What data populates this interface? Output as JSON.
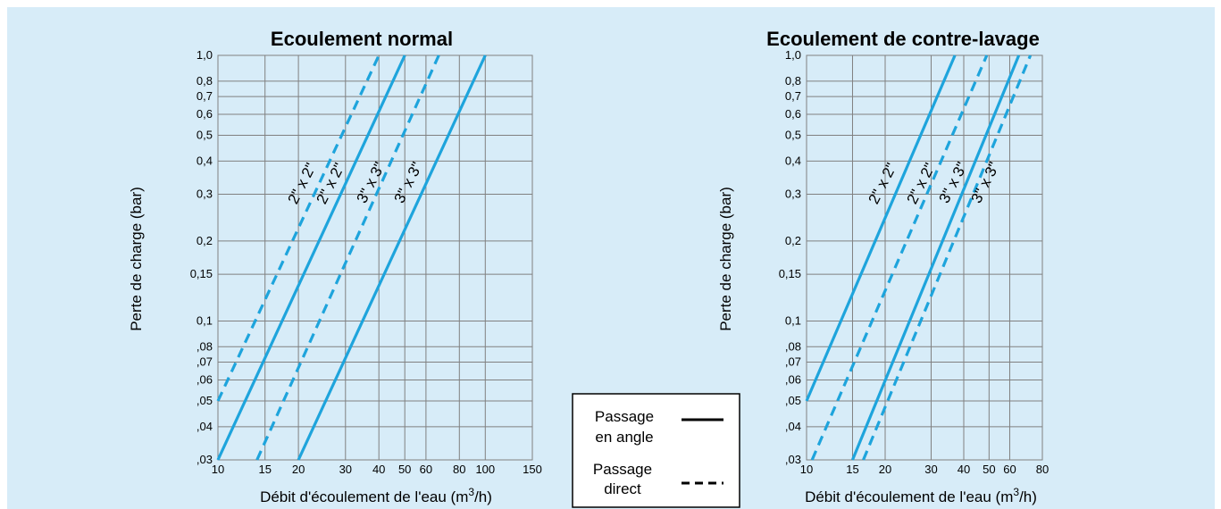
{
  "chart_data": [
    {
      "type": "line",
      "title": "Ecoulement normal",
      "xlabel": "Débit d'écoulement de l'eau (m³/h)",
      "ylabel": "Perte de charge (bar)",
      "xscale": "log",
      "yscale": "log",
      "xlim": [
        10,
        150
      ],
      "ylim": [
        0.03,
        1.0
      ],
      "x_ticks": [
        10,
        15,
        20,
        30,
        40,
        50,
        60,
        80,
        100,
        150
      ],
      "x_tick_labels": [
        "10",
        "15",
        "20",
        "30",
        "40",
        "50",
        "60",
        "80",
        "100",
        "150"
      ],
      "y_ticks": [
        0.03,
        0.04,
        0.05,
        0.06,
        0.07,
        0.08,
        0.1,
        0.15,
        0.2,
        0.3,
        0.4,
        0.5,
        0.6,
        0.7,
        0.8,
        1.0
      ],
      "y_tick_labels": [
        ",03",
        ",04",
        ",05",
        ",06",
        ",07",
        ",08",
        "0,1",
        "0,15",
        "0,2",
        "0,3",
        "0,4",
        "0,5",
        "0,6",
        "0,7",
        "0,8",
        "1,0"
      ],
      "grid": true,
      "series": [
        {
          "name": "2\" x 2\"",
          "style": "dashed",
          "points": [
            [
              10,
              0.05
            ],
            [
              40,
              1.0
            ]
          ]
        },
        {
          "name": "2\" x 2\"",
          "style": "solid",
          "points": [
            [
              10,
              0.03
            ],
            [
              50,
              1.0
            ]
          ]
        },
        {
          "name": "3\" x 3\"",
          "style": "dashed",
          "points": [
            [
              14,
              0.03
            ],
            [
              67,
              1.0
            ]
          ]
        },
        {
          "name": "3\" x 3\"",
          "style": "solid",
          "points": [
            [
              20,
              0.03
            ],
            [
              100,
              1.0
            ]
          ]
        }
      ]
    },
    {
      "type": "line",
      "title": "Ecoulement de contre-lavage",
      "xlabel": "Débit d'écoulement de l'eau (m³/h)",
      "ylabel": "Perte de charge (bar)",
      "xscale": "log",
      "yscale": "log",
      "xlim": [
        10,
        80
      ],
      "ylim": [
        0.03,
        1.0
      ],
      "x_ticks": [
        10,
        15,
        20,
        30,
        40,
        50,
        60,
        80
      ],
      "x_tick_labels": [
        "10",
        "15",
        "20",
        "30",
        "40",
        "50",
        "60",
        "80"
      ],
      "y_ticks": [
        0.03,
        0.04,
        0.05,
        0.06,
        0.07,
        0.08,
        0.1,
        0.15,
        0.2,
        0.3,
        0.4,
        0.5,
        0.6,
        0.7,
        0.8,
        1.0
      ],
      "y_tick_labels": [
        ",03",
        ",04",
        ",05",
        ",06",
        ",07",
        ",08",
        "0,1",
        "0,15",
        "0,2",
        "0,3",
        "0,4",
        "0,5",
        "0,6",
        "0,7",
        "0,8",
        "1,0"
      ],
      "grid": true,
      "series": [
        {
          "name": "2\" x 2\"",
          "style": "solid",
          "points": [
            [
              10,
              0.05
            ],
            [
              37,
              1.0
            ]
          ]
        },
        {
          "name": "2\" x 2\"",
          "style": "dashed",
          "points": [
            [
              10.5,
              0.03
            ],
            [
              49,
              1.0
            ]
          ]
        },
        {
          "name": "3\" x 3\"",
          "style": "solid",
          "points": [
            [
              15,
              0.03
            ],
            [
              65,
              1.0
            ]
          ]
        },
        {
          "name": "3\" x 3\"",
          "style": "dashed",
          "points": [
            [
              16.5,
              0.03
            ],
            [
              72,
              1.0
            ]
          ]
        }
      ]
    }
  ],
  "legend": {
    "solid_label_line1": "Passage",
    "solid_label_line2": "en angle",
    "dashed_label_line1": "Passage",
    "dashed_label_line2": "direct"
  },
  "colors": {
    "background": "#d7ecf8",
    "grid": "#808080",
    "series": "#1ea4dc"
  },
  "texts": {
    "chart1_title": "Ecoulement normal",
    "chart2_title": "Ecoulement de contre-lavage",
    "ylabel": "Perte de charge (bar)",
    "xlabel_main": "Débit d'écoulement de l'eau (m",
    "xlabel_sup": "3",
    "xlabel_end": "/h)"
  }
}
